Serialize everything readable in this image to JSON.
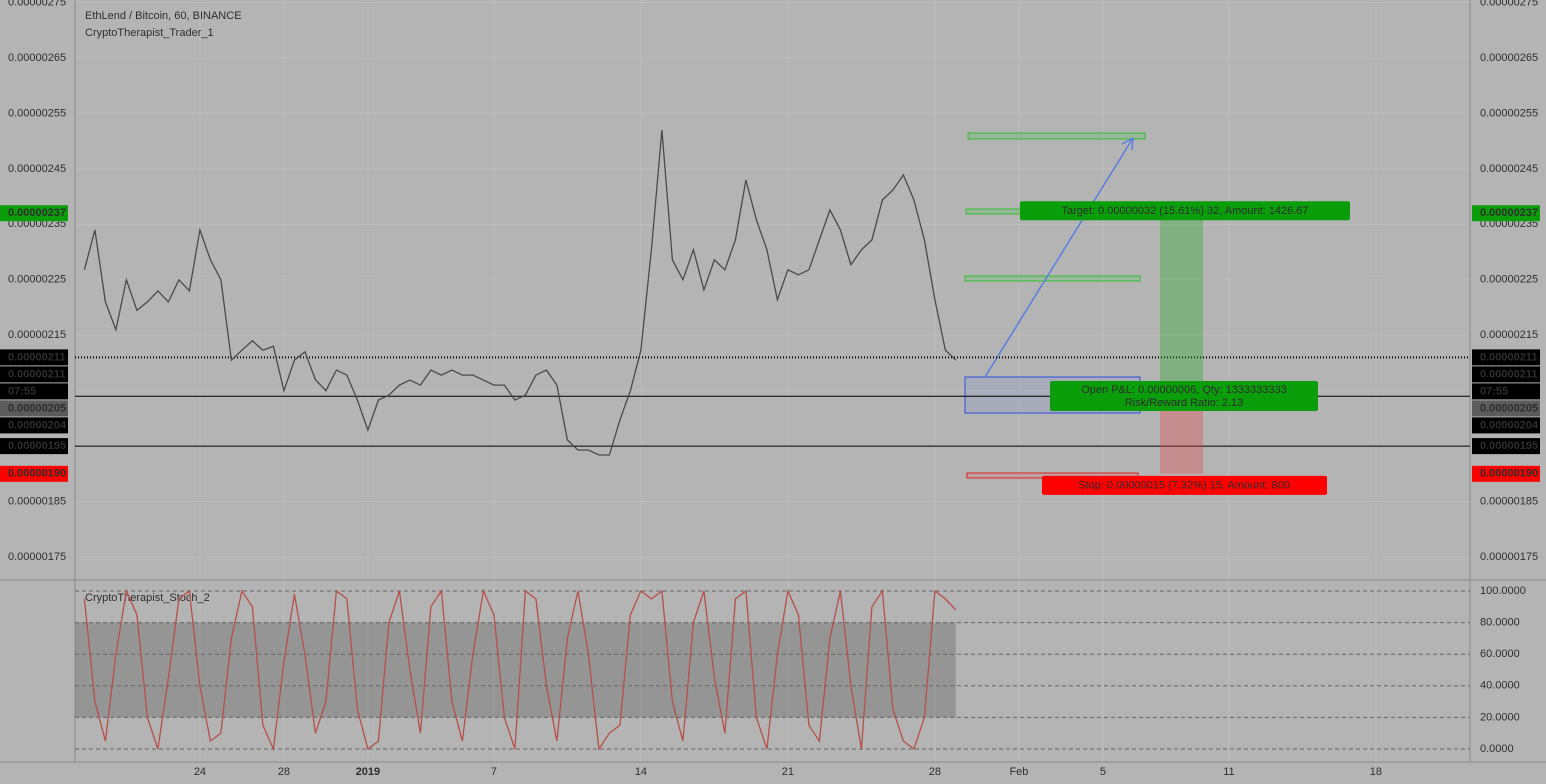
{
  "chart_data": [
    {
      "type": "line",
      "title": "EthLend / Bitcoin, 60, BINANCE",
      "subtitle": "CryptoTherapist_Trader_1",
      "x": [
        -5.5,
        -5,
        -4.5,
        -4,
        -3.5,
        -3,
        -2.5,
        -2,
        -1.5,
        -1,
        -0.5,
        0,
        0.5,
        1,
        1.5,
        2,
        2.5,
        3,
        3.5,
        4,
        4.5,
        5,
        5.5,
        6,
        6.5,
        7,
        7.5,
        8,
        8.5,
        9,
        9.5,
        10,
        10.5,
        11,
        11.5,
        12,
        12.5,
        13,
        13.5,
        14,
        14.5,
        15,
        15.5,
        16,
        16.5,
        17,
        17.5,
        18,
        18.5,
        19,
        19.5,
        20,
        20.5,
        21,
        21.5,
        22,
        22.5,
        23,
        23.5,
        24,
        24.5,
        25,
        25.5,
        26,
        26.5,
        27,
        27.5,
        28,
        28.5,
        29,
        29.5,
        30,
        30.5,
        31,
        31.5,
        32,
        32.5,
        33,
        33.5,
        34,
        34.5,
        35,
        35.5,
        36
      ],
      "values": [
        2.268e-06,
        2.34e-06,
        2.21e-06,
        2.16e-06,
        2.25e-06,
        2.195e-06,
        2.21e-06,
        2.23e-06,
        2.21e-06,
        2.25e-06,
        2.23e-06,
        2.34e-06,
        2.286e-06,
        2.25e-06,
        2.105e-06,
        2.123e-06,
        2.14e-06,
        2.123e-06,
        2.13e-06,
        2.05e-06,
        2.105e-06,
        2.12e-06,
        2.07e-06,
        2.05e-06,
        2.087e-06,
        2.078e-06,
        2.033e-06,
        1.979e-06,
        2.033e-06,
        2.042e-06,
        2.06e-06,
        2.069e-06,
        2.06e-06,
        2.087e-06,
        2.078e-06,
        2.087e-06,
        2.078e-06,
        2.078e-06,
        2.069e-06,
        2.06e-06,
        2.06e-06,
        2.033e-06,
        2.042e-06,
        2.078e-06,
        2.087e-06,
        2.06e-06,
        1.961e-06,
        1.943e-06,
        1.943e-06,
        1.934e-06,
        1.934e-06,
        1.997e-06,
        2.05e-06,
        2.123e-06,
        2.304e-06,
        2.52e-06,
        2.286e-06,
        2.25e-06,
        2.304e-06,
        2.232e-06,
        2.286e-06,
        2.268e-06,
        2.322e-06,
        2.43e-06,
        2.358e-06,
        2.304e-06,
        2.214e-06,
        2.268e-06,
        2.259e-06,
        2.268e-06,
        2.322e-06,
        2.376e-06,
        2.34e-06,
        2.277e-06,
        2.304e-06,
        2.322e-06,
        2.394e-06,
        2.412e-06,
        2.439e-06,
        2.394e-06,
        2.322e-06,
        2.214e-06,
        2.123e-06,
        2.105e-06
      ],
      "color": "#4a4a4a",
      "xlim": [
        -5.95,
        60.48
      ],
      "xticks": [
        {
          "value": 0,
          "label": "24"
        },
        {
          "value": 4,
          "label": "28"
        },
        {
          "value": 8,
          "label": "2019"
        },
        {
          "value": 14,
          "label": "7"
        },
        {
          "value": 21,
          "label": "14"
        },
        {
          "value": 28,
          "label": "21"
        },
        {
          "value": 35,
          "label": "28"
        },
        {
          "value": 39,
          "label": "Feb"
        },
        {
          "value": 43,
          "label": "5"
        },
        {
          "value": 49,
          "label": "11"
        },
        {
          "value": 56,
          "label": "18"
        }
      ],
      "ylim": [
        1.7085e-06,
        2.7546e-06
      ],
      "yticks": [
        2.75e-06,
        2.65e-06,
        2.55e-06,
        2.45e-06,
        2.35e-06,
        2.25e-06,
        2.15e-06,
        2.05e-06,
        1.95e-06,
        1.85e-06,
        1.75e-06
      ],
      "grid": true,
      "hlines": [
        {
          "value": 2.11e-06,
          "style": "dotted"
        },
        {
          "value": 2.04e-06,
          "style": "solid"
        },
        {
          "value": 1.95e-06,
          "style": "solid"
        }
      ],
      "price_labels": [
        {
          "value": 2.37e-06,
          "color": "#0a9e0a"
        },
        {
          "value": 2.11e-06,
          "color": "#000000"
        },
        {
          "value": 2.11e-06,
          "color": "#000000"
        },
        {
          "value": 2.05e-06,
          "label": "07:55",
          "color": "#000000"
        },
        {
          "value": 2.05e-06,
          "color": "#5c5c5c"
        },
        {
          "value": 2.04e-06,
          "color": "#000000"
        },
        {
          "value": 1.95e-06,
          "color": "#000000"
        },
        {
          "value": 1.9e-06,
          "label": "0.00000190",
          "color": "#ff0000"
        }
      ],
      "position": {
        "target": 2.37e-06,
        "entry": 2.05e-06,
        "stop": 1.9e-06,
        "target_label": "Target: 0.00000032 (15.61%) 32, Amount: 1426.67",
        "pnl_label": "Open P&L: 0.00000006, Qty: 1333333333",
        "ratio_label": "Risk/Reward Ratio: 2.13",
        "stop_label": "Stop: 0.00000015 (7.32%) 15, Amount: 800"
      }
    },
    {
      "type": "line",
      "series_name": "CryptoTherapist_Stoch_2",
      "x": [
        -5.5,
        -5,
        -4.5,
        -4,
        -3.5,
        -3,
        -2.5,
        -2,
        -1.5,
        -1,
        -0.5,
        0,
        0.5,
        1,
        1.5,
        2,
        2.5,
        3,
        3.5,
        4,
        4.5,
        5,
        5.5,
        6,
        6.5,
        7,
        7.5,
        8,
        8.5,
        9,
        9.5,
        10,
        10.5,
        11,
        11.5,
        12,
        12.5,
        13,
        13.5,
        14,
        14.5,
        15,
        15.5,
        16,
        16.5,
        17,
        17.5,
        18,
        18.5,
        19,
        19.5,
        20,
        20.5,
        21,
        21.5,
        22,
        22.5,
        23,
        23.5,
        24,
        24.5,
        25,
        25.5,
        26,
        26.5,
        27,
        27.5,
        28,
        28.5,
        29,
        29.5,
        30,
        30.5,
        31,
        31.5,
        32,
        32.5,
        33,
        33.5,
        34,
        34.5,
        35,
        35.5,
        36
      ],
      "values": [
        95,
        30,
        5,
        60,
        100,
        85,
        20,
        0,
        45,
        95,
        100,
        40,
        5,
        10,
        70,
        100,
        90,
        15,
        0,
        55,
        98,
        60,
        10,
        30,
        100,
        95,
        25,
        0,
        5,
        80,
        100,
        50,
        10,
        90,
        100,
        30,
        5,
        60,
        100,
        85,
        20,
        0,
        100,
        95,
        40,
        5,
        70,
        100,
        60,
        0,
        10,
        15,
        85,
        100,
        95,
        100,
        30,
        5,
        80,
        100,
        45,
        10,
        95,
        100,
        20,
        0,
        60,
        100,
        85,
        15,
        5,
        70,
        100,
        40,
        0,
        90,
        100,
        25,
        5,
        0,
        20,
        100,
        95,
        88
      ],
      "color": "#b5504a",
      "xlim": [
        -5.95,
        60.48
      ],
      "ylim": [
        -8.23,
        106.96
      ],
      "yticks": [
        {
          "value": 100,
          "label": "100.0000"
        },
        {
          "value": 80,
          "label": "80.0000"
        },
        {
          "value": 60,
          "label": "60.0000"
        },
        {
          "value": 40,
          "label": "40.0000"
        },
        {
          "value": 20,
          "label": "20.0000"
        },
        {
          "value": 0,
          "label": "0.0000"
        }
      ],
      "band": [
        20,
        80
      ]
    }
  ]
}
